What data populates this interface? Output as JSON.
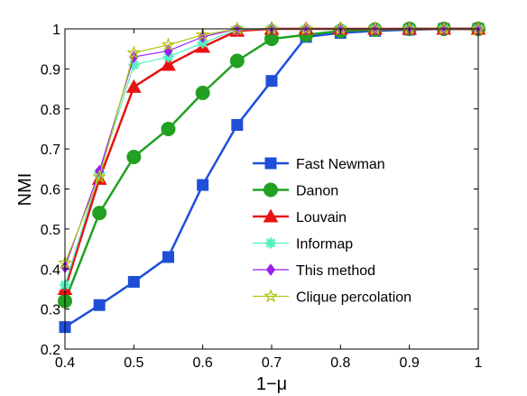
{
  "chart_data": {
    "type": "line",
    "xlabel": "1−μ",
    "ylabel": "NMI",
    "xlim": [
      0.4,
      1.0
    ],
    "ylim": [
      0.2,
      1.0
    ],
    "x_ticks": [
      "0.4",
      "0.5",
      "0.6",
      "0.7",
      "0.8",
      "0.9",
      "1"
    ],
    "y_ticks": [
      "0.2",
      "0.3",
      "0.4",
      "0.5",
      "0.6",
      "0.7",
      "0.8",
      "0.9",
      "1"
    ],
    "grid": false,
    "legend_position": "center-right",
    "x": [
      0.4,
      0.45,
      0.5,
      0.55,
      0.6,
      0.65,
      0.7,
      0.75,
      0.8,
      0.85,
      0.9,
      0.95,
      1.0
    ],
    "series": [
      {
        "name": "Fast Newman",
        "color": "#1f4fd8",
        "marker": "square",
        "line_width": 2.5,
        "marker_size": 12,
        "values": [
          0.255,
          0.31,
          0.368,
          0.43,
          0.61,
          0.76,
          0.87,
          0.98,
          0.99,
          0.995,
          0.998,
          1.0,
          1.0
        ]
      },
      {
        "name": "Danon",
        "color": "#22a022",
        "marker": "circle",
        "line_width": 2.5,
        "marker_size": 15,
        "values": [
          0.32,
          0.54,
          0.68,
          0.75,
          0.84,
          0.92,
          0.975,
          0.985,
          0.995,
          0.998,
          1.0,
          1.0,
          1.0
        ]
      },
      {
        "name": "Louvain",
        "color": "#e81212",
        "marker": "triangle",
        "line_width": 2.5,
        "marker_size": 15,
        "values": [
          0.35,
          0.625,
          0.855,
          0.91,
          0.955,
          0.995,
          1.0,
          1.0,
          1.0,
          1.0,
          1.0,
          1.0,
          1.0
        ]
      },
      {
        "name": "Informap",
        "color": "#52f0c0",
        "marker": "asterisk",
        "line_width": 1.2,
        "marker_size": 12,
        "values": [
          0.36,
          0.64,
          0.91,
          0.93,
          0.965,
          0.998,
          1.0,
          1.0,
          1.0,
          1.0,
          1.0,
          1.0,
          1.0
        ]
      },
      {
        "name": "This method",
        "color": "#9a1ff0",
        "marker": "diamond",
        "line_width": 1.2,
        "marker_size": 12,
        "values": [
          0.405,
          0.645,
          0.93,
          0.945,
          0.98,
          1.0,
          1.0,
          1.0,
          1.0,
          1.0,
          1.0,
          1.0,
          1.0
        ]
      },
      {
        "name": "Clique percolation",
        "color": "#b5c414",
        "marker": "star",
        "line_width": 1.2,
        "marker_size": 13,
        "values": [
          0.415,
          0.63,
          0.94,
          0.96,
          0.985,
          1.0,
          1.0,
          1.0,
          1.0,
          1.0,
          1.0,
          1.0,
          1.0
        ]
      }
    ]
  }
}
